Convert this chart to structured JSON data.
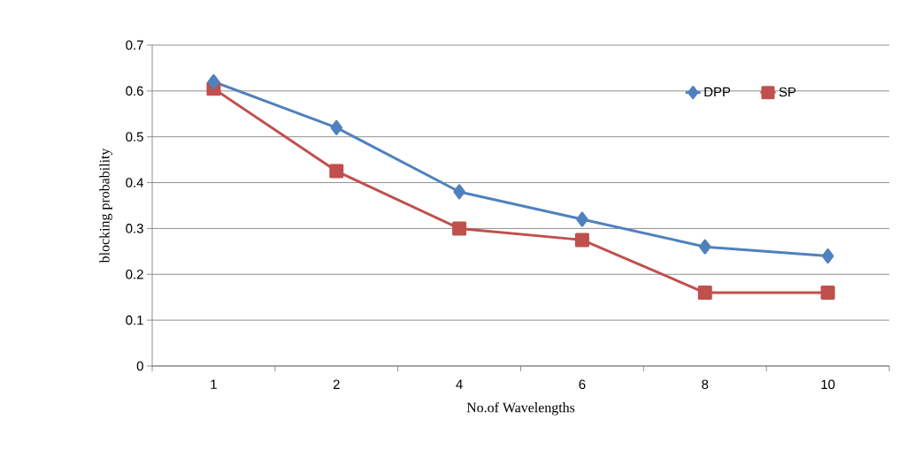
{
  "chart_data": {
    "type": "line",
    "xlabel": "No.of Wavelengths",
    "ylabel": "blocking probability",
    "categories": [
      "1",
      "2",
      "4",
      "6",
      "8",
      "10"
    ],
    "series": [
      {
        "name": "DPP",
        "color": "#4f81bd",
        "marker": "diamond",
        "values": [
          0.62,
          0.52,
          0.38,
          0.32,
          0.26,
          0.24
        ]
      },
      {
        "name": "SP",
        "color": "#c0504d",
        "marker": "square",
        "values": [
          0.605,
          0.425,
          0.3,
          0.275,
          0.16,
          0.16
        ]
      }
    ],
    "ylim": [
      0,
      0.7
    ],
    "yticks": [
      0,
      0.1,
      0.2,
      0.3,
      0.4,
      0.5,
      0.6,
      0.7
    ],
    "grid": "y",
    "legend": "top right"
  }
}
